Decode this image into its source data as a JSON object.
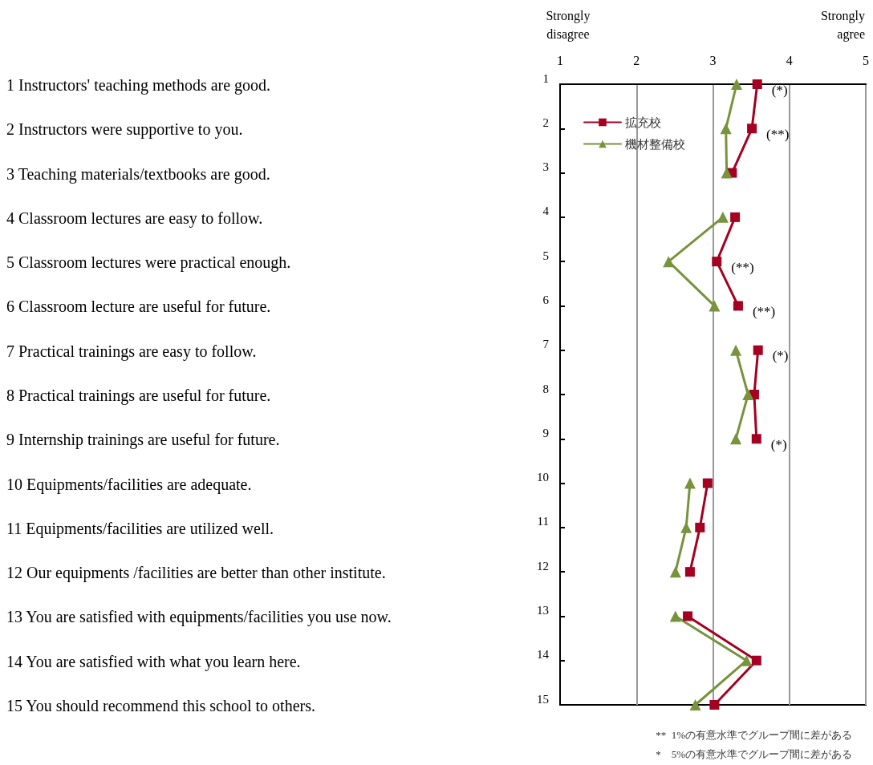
{
  "chart_data": {
    "type": "line",
    "xlim": [
      1,
      5
    ],
    "xticks": [
      1,
      2,
      3,
      4,
      5
    ],
    "ylim": [
      15,
      1
    ],
    "yticks": [
      1,
      2,
      3,
      4,
      5,
      6,
      7,
      8,
      9,
      10,
      11,
      12,
      13,
      14,
      15
    ],
    "grid": "x",
    "legend": "top left",
    "series": [
      {
        "name": "拡充校",
        "color": "#a50021",
        "marker": "square",
        "x": [
          3.58,
          3.51,
          3.25,
          null,
          3.29,
          3.05,
          3.33,
          null,
          3.59,
          3.54,
          3.57,
          null,
          2.93,
          2.83,
          2.7,
          null,
          2.67,
          3.57,
          3.02
        ],
        "values": [
          1,
          2,
          3,
          null,
          4,
          5,
          6,
          null,
          7,
          8,
          9,
          null,
          10,
          11,
          12,
          null,
          13,
          14,
          15
        ]
      },
      {
        "name": "機材整備校",
        "color": "#77933c",
        "marker": "triangle",
        "x": [
          3.31,
          3.17,
          3.18,
          null,
          3.13,
          2.42,
          3.02,
          null,
          3.3,
          3.46,
          3.3,
          null,
          2.7,
          2.65,
          2.51,
          null,
          2.51,
          3.44,
          2.77
        ],
        "values": [
          1,
          2,
          3,
          null,
          4,
          5,
          6,
          null,
          7,
          8,
          9,
          null,
          10,
          11,
          12,
          null,
          13,
          14,
          15
        ]
      }
    ],
    "annotations": [
      "Strongly disagree",
      "Strongly agree",
      "1 Instructors' teaching methods are good.",
      "2 Instructors were supportive to you.",
      "3 Teaching materials/textbooks are good.",
      "4 Classroom lectures are easy to follow.",
      "5 Classroom lectures were practical enough.",
      "6 Classroom lecture are useful for future.",
      "7 Practical trainings are easy to follow.",
      "8 Practical trainings are useful for future.",
      "9 Internship trainings are useful for future.",
      "10 Equipments/facilities are adequate.",
      "11 Equipments/facilities are utilized well.",
      "12 Our equipments /facilities are better than other institute.",
      "13 You are satisfied with equipments/facilities you use now.",
      "14 You are satisfied with what you learn here.",
      "15 You should recommend this school to others.",
      {
        "text": "(*)",
        "x": 3.58,
        "y": 1
      },
      {
        "text": "(**)",
        "x": 3.51,
        "y": 2
      },
      {
        "text": "(**)",
        "x": 3.05,
        "y": 5
      },
      {
        "text": "(**)",
        "x": 3.33,
        "y": 6
      },
      {
        "text": "(*)",
        "x": 3.59,
        "y": 7
      },
      {
        "text": "(*)",
        "x": 3.57,
        "y": 9
      },
      "**  1%の有意水準でグループ間に差がある",
      "*    5%の有意水準でグループ間に差がある"
    ]
  }
}
